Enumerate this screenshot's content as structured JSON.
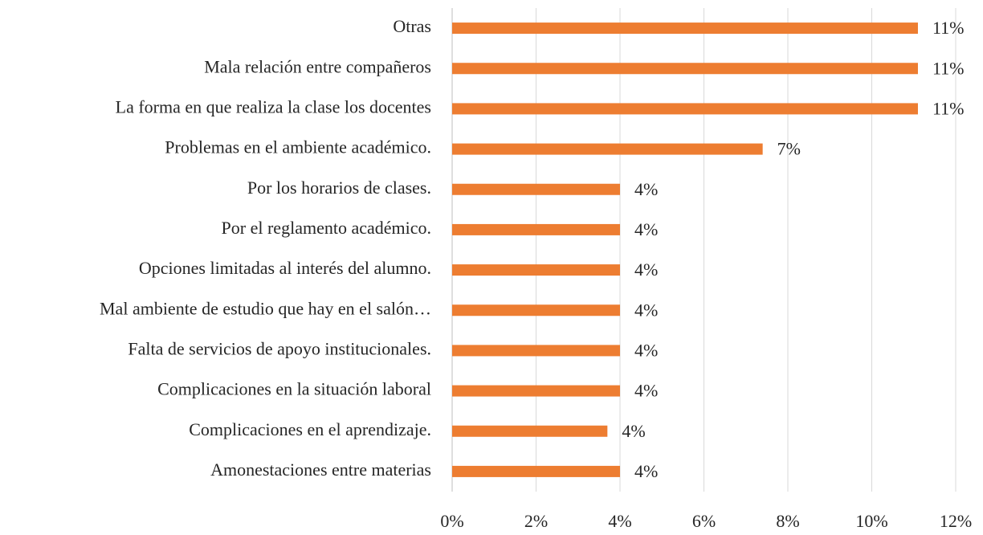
{
  "chart_data": {
    "type": "hbar",
    "categories": [
      "Otras",
      "Mala relación entre compañeros",
      "La forma en que realiza la clase los docentes",
      "Problemas en el ambiente académico.",
      "Por los horarios de clases.",
      "Por el reglamento académico.",
      "Opciones limitadas al interés del alumno.",
      "Mal ambiente de estudio que hay en el salón…",
      "Falta de servicios de apoyo institucionales.",
      "Complicaciones en la situación laboral",
      "Complicaciones en el aprendizaje.",
      "Amonestaciones entre materias"
    ],
    "values": [
      11.1,
      11.1,
      11.1,
      7.4,
      4.0,
      4.0,
      4.0,
      4.0,
      4.0,
      4.0,
      3.7,
      4.0
    ],
    "value_labels": [
      "11%",
      "11%",
      "11%",
      "7%",
      "4%",
      "4%",
      "4%",
      "4%",
      "4%",
      "4%",
      "4%",
      "4%"
    ],
    "color": "#ed7d31",
    "xlim": [
      0,
      12
    ],
    "xticks": [
      {
        "value": 0,
        "label": "0%"
      },
      {
        "value": 2,
        "label": "2%"
      },
      {
        "value": 4,
        "label": "4%"
      },
      {
        "value": 6,
        "label": "6%"
      },
      {
        "value": 8,
        "label": "8%"
      },
      {
        "value": 10,
        "label": "10%"
      },
      {
        "value": 12,
        "label": "12%"
      }
    ],
    "grid": true
  }
}
